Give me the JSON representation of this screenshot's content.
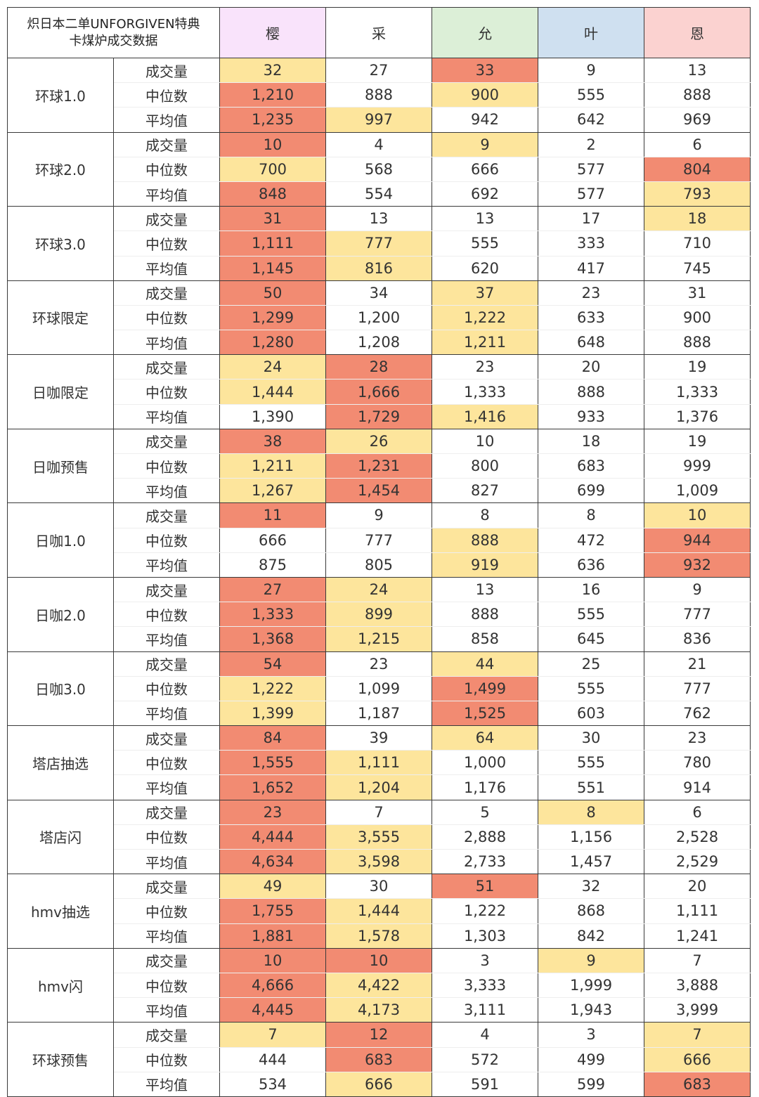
{
  "title_lines": [
    "炽日本二单UNFORGIVEN特典",
    "卡煤炉成交数据"
  ],
  "colors": {
    "red": "#f28b72",
    "yellow": "#fde59c",
    "white": "#ffffff"
  },
  "members": [
    {
      "name": "樱",
      "color": "#f9e3fb"
    },
    {
      "name": "采",
      "color": "#ffffff"
    },
    {
      "name": "允",
      "color": "#dcefd7"
    },
    {
      "name": "叶",
      "color": "#cfe0f0"
    },
    {
      "name": "恩",
      "color": "#fbd2d0"
    }
  ],
  "metrics": [
    "成交量",
    "中位数",
    "平均值"
  ],
  "groups": [
    {
      "name": "环球1.0",
      "rows": [
        [
          [
            "32",
            "y"
          ],
          [
            "27",
            "w"
          ],
          [
            "33",
            "r"
          ],
          [
            "9",
            "w"
          ],
          [
            "13",
            "w"
          ]
        ],
        [
          [
            "1,210",
            "r"
          ],
          [
            "888",
            "w"
          ],
          [
            "900",
            "y"
          ],
          [
            "555",
            "w"
          ],
          [
            "888",
            "w"
          ]
        ],
        [
          [
            "1,235",
            "r"
          ],
          [
            "997",
            "y"
          ],
          [
            "942",
            "w"
          ],
          [
            "642",
            "w"
          ],
          [
            "969",
            "w"
          ]
        ]
      ]
    },
    {
      "name": "环球2.0",
      "rows": [
        [
          [
            "10",
            "r"
          ],
          [
            "4",
            "w"
          ],
          [
            "9",
            "y"
          ],
          [
            "2",
            "w"
          ],
          [
            "6",
            "w"
          ]
        ],
        [
          [
            "700",
            "y"
          ],
          [
            "568",
            "w"
          ],
          [
            "666",
            "w"
          ],
          [
            "577",
            "w"
          ],
          [
            "804",
            "r"
          ]
        ],
        [
          [
            "848",
            "r"
          ],
          [
            "554",
            "w"
          ],
          [
            "692",
            "w"
          ],
          [
            "577",
            "w"
          ],
          [
            "793",
            "y"
          ]
        ]
      ]
    },
    {
      "name": "环球3.0",
      "rows": [
        [
          [
            "31",
            "r"
          ],
          [
            "13",
            "w"
          ],
          [
            "13",
            "w"
          ],
          [
            "17",
            "w"
          ],
          [
            "18",
            "y"
          ]
        ],
        [
          [
            "1,111",
            "r"
          ],
          [
            "777",
            "y"
          ],
          [
            "555",
            "w"
          ],
          [
            "333",
            "w"
          ],
          [
            "710",
            "w"
          ]
        ],
        [
          [
            "1,145",
            "r"
          ],
          [
            "816",
            "y"
          ],
          [
            "620",
            "w"
          ],
          [
            "417",
            "w"
          ],
          [
            "745",
            "w"
          ]
        ]
      ]
    },
    {
      "name": "环球限定",
      "rows": [
        [
          [
            "50",
            "r"
          ],
          [
            "34",
            "w"
          ],
          [
            "37",
            "y"
          ],
          [
            "23",
            "w"
          ],
          [
            "31",
            "w"
          ]
        ],
        [
          [
            "1,299",
            "r"
          ],
          [
            "1,200",
            "w"
          ],
          [
            "1,222",
            "y"
          ],
          [
            "633",
            "w"
          ],
          [
            "900",
            "w"
          ]
        ],
        [
          [
            "1,280",
            "r"
          ],
          [
            "1,208",
            "w"
          ],
          [
            "1,211",
            "y"
          ],
          [
            "648",
            "w"
          ],
          [
            "888",
            "w"
          ]
        ]
      ]
    },
    {
      "name": "日咖限定",
      "rows": [
        [
          [
            "24",
            "y"
          ],
          [
            "28",
            "r"
          ],
          [
            "23",
            "w"
          ],
          [
            "20",
            "w"
          ],
          [
            "19",
            "w"
          ]
        ],
        [
          [
            "1,444",
            "y"
          ],
          [
            "1,666",
            "r"
          ],
          [
            "1,333",
            "w"
          ],
          [
            "888",
            "w"
          ],
          [
            "1,333",
            "w"
          ]
        ],
        [
          [
            "1,390",
            "w"
          ],
          [
            "1,729",
            "r"
          ],
          [
            "1,416",
            "y"
          ],
          [
            "933",
            "w"
          ],
          [
            "1,376",
            "w"
          ]
        ]
      ]
    },
    {
      "name": "日咖预售",
      "rows": [
        [
          [
            "38",
            "r"
          ],
          [
            "26",
            "y"
          ],
          [
            "10",
            "w"
          ],
          [
            "18",
            "w"
          ],
          [
            "19",
            "w"
          ]
        ],
        [
          [
            "1,211",
            "y"
          ],
          [
            "1,231",
            "r"
          ],
          [
            "800",
            "w"
          ],
          [
            "683",
            "w"
          ],
          [
            "999",
            "w"
          ]
        ],
        [
          [
            "1,267",
            "y"
          ],
          [
            "1,454",
            "r"
          ],
          [
            "827",
            "w"
          ],
          [
            "699",
            "w"
          ],
          [
            "1,009",
            "w"
          ]
        ]
      ]
    },
    {
      "name": "日咖1.0",
      "rows": [
        [
          [
            "11",
            "r"
          ],
          [
            "9",
            "w"
          ],
          [
            "8",
            "w"
          ],
          [
            "8",
            "w"
          ],
          [
            "10",
            "y"
          ]
        ],
        [
          [
            "666",
            "w"
          ],
          [
            "777",
            "w"
          ],
          [
            "888",
            "y"
          ],
          [
            "472",
            "w"
          ],
          [
            "944",
            "r"
          ]
        ],
        [
          [
            "875",
            "w"
          ],
          [
            "805",
            "w"
          ],
          [
            "919",
            "y"
          ],
          [
            "636",
            "w"
          ],
          [
            "932",
            "r"
          ]
        ]
      ]
    },
    {
      "name": "日咖2.0",
      "rows": [
        [
          [
            "27",
            "r"
          ],
          [
            "24",
            "y"
          ],
          [
            "13",
            "w"
          ],
          [
            "16",
            "w"
          ],
          [
            "9",
            "w"
          ]
        ],
        [
          [
            "1,333",
            "r"
          ],
          [
            "899",
            "y"
          ],
          [
            "888",
            "w"
          ],
          [
            "555",
            "w"
          ],
          [
            "777",
            "w"
          ]
        ],
        [
          [
            "1,368",
            "r"
          ],
          [
            "1,215",
            "y"
          ],
          [
            "858",
            "w"
          ],
          [
            "645",
            "w"
          ],
          [
            "836",
            "w"
          ]
        ]
      ]
    },
    {
      "name": "日咖3.0",
      "rows": [
        [
          [
            "54",
            "r"
          ],
          [
            "23",
            "w"
          ],
          [
            "44",
            "y"
          ],
          [
            "25",
            "w"
          ],
          [
            "21",
            "w"
          ]
        ],
        [
          [
            "1,222",
            "y"
          ],
          [
            "1,099",
            "w"
          ],
          [
            "1,499",
            "r"
          ],
          [
            "555",
            "w"
          ],
          [
            "777",
            "w"
          ]
        ],
        [
          [
            "1,399",
            "y"
          ],
          [
            "1,187",
            "w"
          ],
          [
            "1,525",
            "r"
          ],
          [
            "603",
            "w"
          ],
          [
            "762",
            "w"
          ]
        ]
      ]
    },
    {
      "name": "塔店抽选",
      "rows": [
        [
          [
            "84",
            "r"
          ],
          [
            "39",
            "w"
          ],
          [
            "64",
            "y"
          ],
          [
            "30",
            "w"
          ],
          [
            "23",
            "w"
          ]
        ],
        [
          [
            "1,555",
            "r"
          ],
          [
            "1,111",
            "y"
          ],
          [
            "1,000",
            "w"
          ],
          [
            "555",
            "w"
          ],
          [
            "780",
            "w"
          ]
        ],
        [
          [
            "1,652",
            "r"
          ],
          [
            "1,204",
            "y"
          ],
          [
            "1,176",
            "w"
          ],
          [
            "551",
            "w"
          ],
          [
            "914",
            "w"
          ]
        ]
      ]
    },
    {
      "name": "塔店闪",
      "rows": [
        [
          [
            "23",
            "r"
          ],
          [
            "7",
            "w"
          ],
          [
            "5",
            "w"
          ],
          [
            "8",
            "y"
          ],
          [
            "6",
            "w"
          ]
        ],
        [
          [
            "4,444",
            "r"
          ],
          [
            "3,555",
            "y"
          ],
          [
            "2,888",
            "w"
          ],
          [
            "1,156",
            "w"
          ],
          [
            "2,528",
            "w"
          ]
        ],
        [
          [
            "4,634",
            "r"
          ],
          [
            "3,598",
            "y"
          ],
          [
            "2,733",
            "w"
          ],
          [
            "1,457",
            "w"
          ],
          [
            "2,529",
            "w"
          ]
        ]
      ]
    },
    {
      "name": "hmv抽选",
      "rows": [
        [
          [
            "49",
            "y"
          ],
          [
            "30",
            "w"
          ],
          [
            "51",
            "r"
          ],
          [
            "32",
            "w"
          ],
          [
            "20",
            "w"
          ]
        ],
        [
          [
            "1,755",
            "r"
          ],
          [
            "1,444",
            "y"
          ],
          [
            "1,222",
            "w"
          ],
          [
            "868",
            "w"
          ],
          [
            "1,111",
            "w"
          ]
        ],
        [
          [
            "1,881",
            "r"
          ],
          [
            "1,578",
            "y"
          ],
          [
            "1,303",
            "w"
          ],
          [
            "842",
            "w"
          ],
          [
            "1,241",
            "w"
          ]
        ]
      ]
    },
    {
      "name": "hmv闪",
      "rows": [
        [
          [
            "10",
            "r"
          ],
          [
            "10",
            "r"
          ],
          [
            "3",
            "w"
          ],
          [
            "9",
            "y"
          ],
          [
            "7",
            "w"
          ]
        ],
        [
          [
            "4,666",
            "r"
          ],
          [
            "4,422",
            "y"
          ],
          [
            "3,333",
            "w"
          ],
          [
            "1,999",
            "w"
          ],
          [
            "3,888",
            "w"
          ]
        ],
        [
          [
            "4,445",
            "r"
          ],
          [
            "4,173",
            "y"
          ],
          [
            "3,111",
            "w"
          ],
          [
            "1,943",
            "w"
          ],
          [
            "3,999",
            "w"
          ]
        ]
      ]
    },
    {
      "name": "环球预售",
      "rows": [
        [
          [
            "7",
            "y"
          ],
          [
            "12",
            "r"
          ],
          [
            "4",
            "w"
          ],
          [
            "3",
            "w"
          ],
          [
            "7",
            "y"
          ]
        ],
        [
          [
            "444",
            "w"
          ],
          [
            "683",
            "r"
          ],
          [
            "572",
            "w"
          ],
          [
            "499",
            "w"
          ],
          [
            "666",
            "y"
          ]
        ],
        [
          [
            "534",
            "w"
          ],
          [
            "666",
            "y"
          ],
          [
            "591",
            "w"
          ],
          [
            "599",
            "w"
          ],
          [
            "683",
            "r"
          ]
        ]
      ]
    }
  ]
}
